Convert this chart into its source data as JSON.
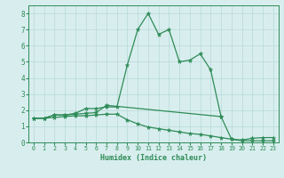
{
  "xlabel": "Humidex (Indice chaleur)",
  "x": [
    0,
    1,
    2,
    3,
    4,
    5,
    6,
    7,
    8,
    9,
    10,
    11,
    12,
    13,
    14,
    15,
    16,
    17,
    18,
    19,
    20,
    21,
    22,
    23
  ],
  "line1": [
    1.5,
    1.5,
    1.7,
    1.7,
    1.8,
    2.1,
    2.1,
    2.2,
    2.2,
    4.8,
    7.0,
    8.0,
    6.7,
    7.0,
    5.0,
    5.1,
    5.5,
    4.5,
    1.6,
    null,
    null,
    null,
    null,
    null
  ],
  "line2": [
    1.5,
    1.5,
    1.7,
    1.7,
    1.75,
    1.8,
    1.85,
    2.3,
    null,
    null,
    null,
    null,
    null,
    null,
    null,
    null,
    null,
    null,
    1.6,
    0.2,
    0.15,
    0.25,
    0.3,
    0.3
  ],
  "line3": [
    1.5,
    1.5,
    1.55,
    1.6,
    1.65,
    1.65,
    1.7,
    1.75,
    1.75,
    1.4,
    1.15,
    0.95,
    0.85,
    0.75,
    0.65,
    0.55,
    0.5,
    0.4,
    0.3,
    0.2,
    0.1,
    0.1,
    0.1,
    0.1
  ],
  "color": "#2e8b57",
  "bg_color": "#d8eeee",
  "grid_color": "#b8d8d8",
  "ylim": [
    0,
    8.5
  ],
  "xlim": [
    -0.5,
    23.5
  ],
  "yticks": [
    0,
    1,
    2,
    3,
    4,
    5,
    6,
    7,
    8
  ],
  "xticks": [
    0,
    1,
    2,
    3,
    4,
    5,
    6,
    7,
    8,
    9,
    10,
    11,
    12,
    13,
    14,
    15,
    16,
    17,
    18,
    19,
    20,
    21,
    22,
    23
  ]
}
